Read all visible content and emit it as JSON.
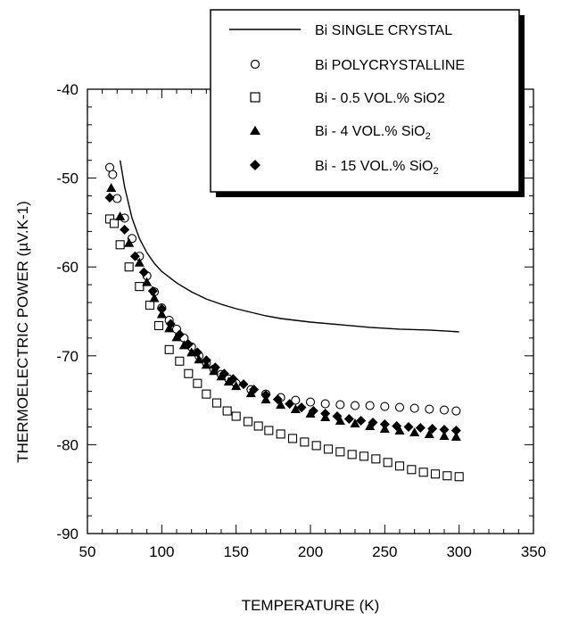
{
  "chart_data": {
    "type": "scatter",
    "title": "",
    "xlabel": "TEMPERATURE (K)",
    "ylabel": "THERMOELECTRIC POWER (µV.K-1)",
    "xlim": [
      50,
      350
    ],
    "ylim": [
      -90,
      -40
    ],
    "x_ticks": [
      "50",
      "100",
      "150",
      "200",
      "250",
      "300",
      "350"
    ],
    "y_ticks": [
      "-40",
      "-50",
      "-60",
      "-70",
      "-80",
      "-90"
    ],
    "grid": false,
    "legend_position": "top-right",
    "series": [
      {
        "name": "Bi SINGLE CRYSTAL",
        "marker": "line",
        "x": [
          72,
          75,
          80,
          85,
          90,
          95,
          100,
          110,
          120,
          130,
          140,
          150,
          160,
          170,
          180,
          190,
          200,
          220,
          240,
          260,
          280,
          300
        ],
        "y": [
          -48.0,
          -51.0,
          -54.5,
          -56.8,
          -58.4,
          -59.6,
          -60.5,
          -61.8,
          -62.8,
          -63.6,
          -64.2,
          -64.7,
          -65.1,
          -65.5,
          -65.8,
          -66.0,
          -66.2,
          -66.5,
          -66.8,
          -67.0,
          -67.1,
          -67.3
        ]
      },
      {
        "name": "Bi POLYCRYSTALLINE",
        "marker": "circle-open",
        "x": [
          65,
          67,
          70,
          75,
          80,
          85,
          90,
          95,
          100,
          105,
          110,
          115,
          120,
          125,
          130,
          135,
          140,
          145,
          150,
          160,
          170,
          180,
          190,
          200,
          210,
          220,
          230,
          240,
          250,
          260,
          270,
          280,
          290,
          298
        ],
        "y": [
          -48.8,
          -49.6,
          -52.3,
          -54.5,
          -56.8,
          -58.8,
          -61.0,
          -62.8,
          -64.6,
          -66.0,
          -67.0,
          -68.0,
          -69.0,
          -70.0,
          -70.8,
          -71.5,
          -72.1,
          -72.6,
          -73.1,
          -73.8,
          -74.3,
          -74.7,
          -75.0,
          -75.2,
          -75.4,
          -75.5,
          -75.6,
          -75.6,
          -75.7,
          -75.8,
          -75.9,
          -76.0,
          -76.1,
          -76.2
        ]
      },
      {
        "name": "Bi - 0.5 VOL.% SiO2",
        "marker": "square-open",
        "x": [
          65,
          68,
          72,
          78,
          85,
          92,
          98,
          105,
          112,
          118,
          124,
          130,
          137,
          144,
          150,
          158,
          165,
          172,
          180,
          188,
          196,
          204,
          212,
          220,
          228,
          236,
          244,
          252,
          260,
          268,
          276,
          284,
          292,
          300
        ],
        "y": [
          -54.6,
          -55.1,
          -57.5,
          -60.0,
          -62.2,
          -64.3,
          -66.6,
          -69.3,
          -70.6,
          -72.0,
          -73.1,
          -74.3,
          -75.3,
          -76.2,
          -76.8,
          -77.4,
          -77.9,
          -78.4,
          -78.8,
          -79.3,
          -79.7,
          -80.1,
          -80.5,
          -80.8,
          -81.1,
          -81.3,
          -81.6,
          -82.0,
          -82.4,
          -82.8,
          -83.1,
          -83.3,
          -83.5,
          -83.6
        ]
      },
      {
        "name": "Bi - 4 VOL.% SiO2",
        "marker": "triangle-filled",
        "x": [
          66,
          72,
          78,
          85,
          90,
          95,
          100,
          105,
          110,
          115,
          120,
          125,
          130,
          135,
          140,
          145,
          150,
          160,
          170,
          180,
          190,
          200,
          210,
          220,
          230,
          240,
          250,
          260,
          270,
          280,
          290,
          298
        ],
        "y": [
          -51.1,
          -54.3,
          -57.3,
          -59.5,
          -61.7,
          -63.5,
          -65.3,
          -66.9,
          -67.9,
          -68.8,
          -69.6,
          -70.4,
          -71.0,
          -71.7,
          -72.3,
          -72.9,
          -73.4,
          -74.2,
          -74.9,
          -75.5,
          -76.0,
          -76.5,
          -76.9,
          -77.3,
          -77.6,
          -77.9,
          -78.2,
          -78.4,
          -78.6,
          -78.8,
          -79.0,
          -79.1
        ]
      },
      {
        "name": "Bi - 15 VOL.% SiO2",
        "marker": "diamond-filled",
        "x": [
          65,
          75,
          82,
          88,
          94,
          100,
          106,
          112,
          118,
          124,
          130,
          136,
          142,
          148,
          155,
          162,
          170,
          178,
          186,
          194,
          202,
          210,
          218,
          226,
          234,
          242,
          250,
          258,
          266,
          274,
          282,
          290,
          298
        ],
        "y": [
          -52.2,
          -55.8,
          -58.8,
          -60.6,
          -62.7,
          -64.7,
          -66.4,
          -67.6,
          -68.7,
          -69.6,
          -70.5,
          -71.3,
          -72.0,
          -72.6,
          -73.2,
          -73.8,
          -74.4,
          -74.9,
          -75.4,
          -75.8,
          -76.2,
          -76.5,
          -76.8,
          -77.1,
          -77.3,
          -77.5,
          -77.7,
          -77.9,
          -78.0,
          -78.1,
          -78.2,
          -78.3,
          -78.4
        ]
      }
    ]
  },
  "legend": {
    "items": [
      {
        "label": "Bi SINGLE CRYSTAL"
      },
      {
        "label": "Bi POLYCRYSTALLINE"
      },
      {
        "label": "Bi - 0.5 VOL.% SiO2"
      },
      {
        "label": "Bi - 4 VOL.% SiO",
        "sub": "2"
      },
      {
        "label": "Bi - 15 VOL.% SiO",
        "sub": "2"
      }
    ]
  }
}
